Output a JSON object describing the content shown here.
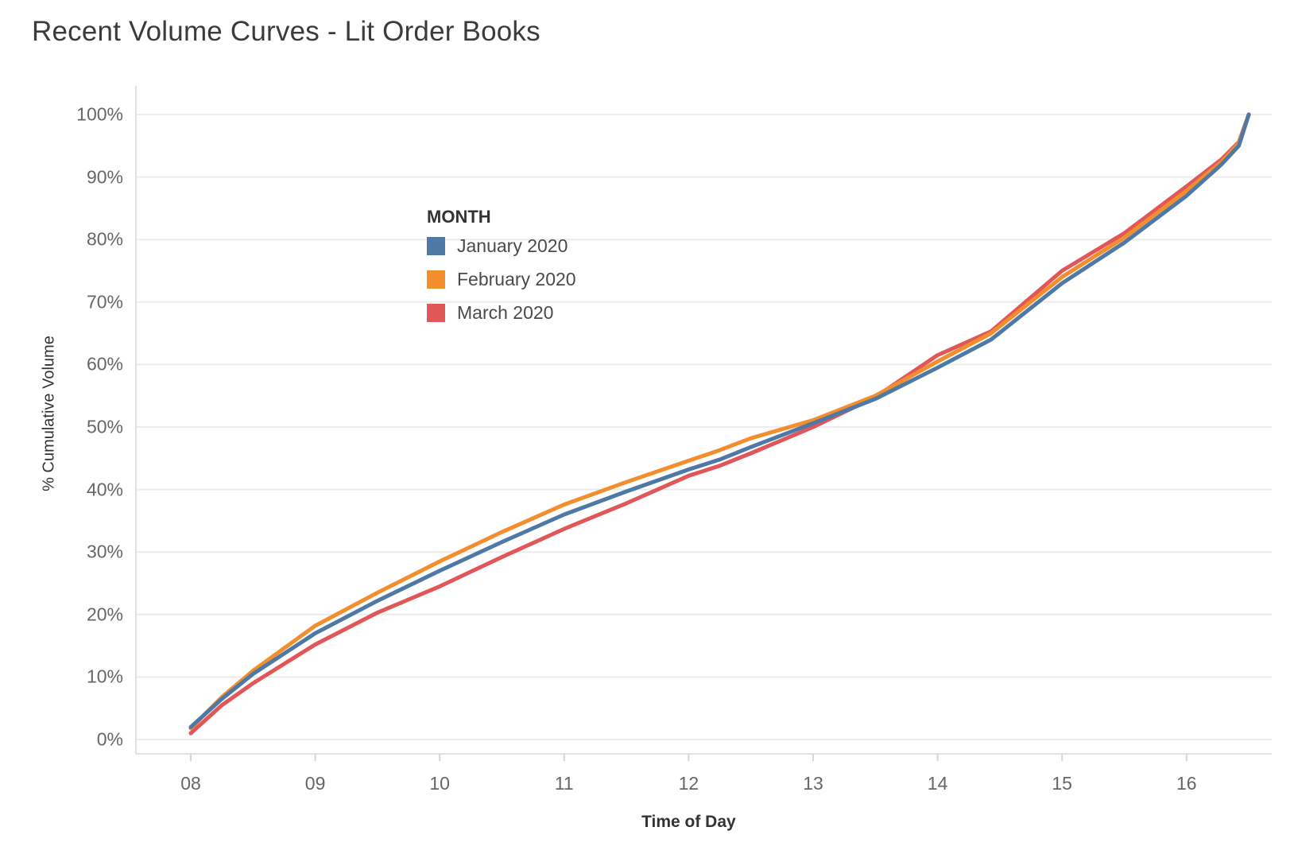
{
  "title": "Recent Volume Curves - Lit Order Books",
  "legend": {
    "title": "MONTH",
    "items": [
      {
        "label": "January 2020",
        "color": "#4e79a7"
      },
      {
        "label": "February 2020",
        "color": "#f28e2b"
      },
      {
        "label": "March 2020",
        "color": "#e15759"
      }
    ]
  },
  "x_axis": {
    "label": "Time of Day",
    "ticks": [
      {
        "value": 8,
        "label": "08"
      },
      {
        "value": 9,
        "label": "09"
      },
      {
        "value": 10,
        "label": "10"
      },
      {
        "value": 11,
        "label": "11"
      },
      {
        "value": 12,
        "label": "12"
      },
      {
        "value": 13,
        "label": "13"
      },
      {
        "value": 14,
        "label": "14"
      },
      {
        "value": 15,
        "label": "15"
      },
      {
        "value": 16,
        "label": "16"
      }
    ]
  },
  "y_axis": {
    "label": "% Cumulative Volume",
    "ticks": [
      {
        "value": 0,
        "label": "0%"
      },
      {
        "value": 10,
        "label": "10%"
      },
      {
        "value": 20,
        "label": "20%"
      },
      {
        "value": 30,
        "label": "30%"
      },
      {
        "value": 40,
        "label": "40%"
      },
      {
        "value": 50,
        "label": "50%"
      },
      {
        "value": 60,
        "label": "60%"
      },
      {
        "value": 70,
        "label": "70%"
      },
      {
        "value": 80,
        "label": "80%"
      },
      {
        "value": 90,
        "label": "90%"
      },
      {
        "value": 100,
        "label": "100%"
      }
    ]
  },
  "chart_data": {
    "type": "line",
    "title": "Recent Volume Curves - Lit Order Books",
    "xlabel": "Time of Day",
    "ylabel": "% Cumulative Volume",
    "xlim": [
      7.55,
      16.8
    ],
    "ylim": [
      0,
      100
    ],
    "grid": "horizontal",
    "legend_position": "inside-upper-left",
    "x": [
      8,
      8.25,
      8.5,
      9,
      9.5,
      10,
      10.5,
      11,
      11.5,
      12,
      12.25,
      12.5,
      13,
      13.5,
      14,
      14.43,
      15,
      15.5,
      16,
      16.28,
      16.42,
      16.5
    ],
    "series": [
      {
        "name": "March 2020",
        "color": "#e15759",
        "values": [
          1.0,
          5.5,
          9.0,
          15.2,
          20.3,
          24.5,
          29.2,
          33.7,
          37.8,
          42.2,
          43.8,
          45.8,
          50.0,
          54.8,
          61.5,
          65.3,
          75.0,
          81.0,
          88.5,
          92.8,
          95.6,
          100
        ]
      },
      {
        "name": "February 2020",
        "color": "#f28e2b",
        "values": [
          1.8,
          6.8,
          11.0,
          18.2,
          23.5,
          28.5,
          33.2,
          37.6,
          41.2,
          44.6,
          46.3,
          48.2,
          51.1,
          55.0,
          60.5,
          65.0,
          74.0,
          80.3,
          87.8,
          92.4,
          95.4,
          100
        ]
      },
      {
        "name": "January 2020",
        "color": "#4e79a7",
        "values": [
          2.0,
          6.5,
          10.5,
          17.0,
          22.2,
          27.0,
          31.6,
          36.0,
          39.7,
          43.2,
          44.8,
          46.8,
          50.6,
          54.5,
          59.5,
          64.0,
          73.0,
          79.5,
          87.0,
          92.0,
          95.0,
          100
        ]
      }
    ]
  },
  "style": {
    "gridline_color": "#ececec",
    "axis_line_color": "#e1e1e1",
    "tick_mark_color": "#d6d6d6",
    "line_width": 5
  }
}
